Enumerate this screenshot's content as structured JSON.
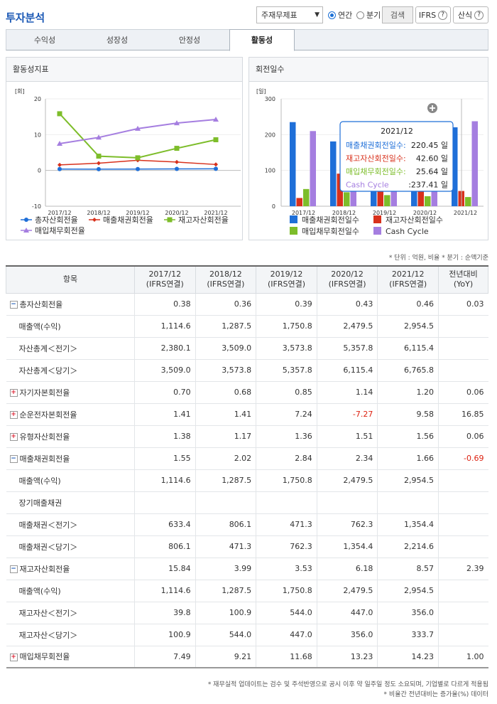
{
  "header": {
    "title": "투자분석",
    "select_value": "주재무제표",
    "radio_annual": "연간",
    "radio_quarter": "분기",
    "search_label": "검색",
    "ifrs_label": "IFRS",
    "formula_label": "산식",
    "help_glyph": "?"
  },
  "tabs": [
    "수익성",
    "성장성",
    "안정성",
    "활동성"
  ],
  "left_panel": {
    "title": "활동성지표",
    "y_unit": "[회]",
    "legend": [
      "총자산회전율",
      "매출채권회전율",
      "재고자산회전율",
      "매입채무회전율"
    ]
  },
  "right_panel": {
    "title": "회전일수",
    "y_unit": "[일]",
    "legend": [
      "매출채권회전일수",
      "재고자산회전일수",
      "매입채무회전일수",
      "Cash Cycle"
    ],
    "tooltip": {
      "title": "2021/12",
      "rows": [
        {
          "label": "매출채권회전일수:",
          "value": "220.45  일"
        },
        {
          "label": "재고자산회전일수:",
          "value": "42.60  일"
        },
        {
          "label": "매입채무회전일수:",
          "value": "25.64  일"
        },
        {
          "label": "Cash Cycle",
          "value": ":237.41  일"
        }
      ]
    }
  },
  "colors": {
    "blue": "#1f6fd8",
    "red": "#d8311c",
    "green": "#7dbd2a",
    "purple": "#a57ee0"
  },
  "chart_data": [
    {
      "type": "line",
      "categories": [
        "2017/12",
        "2018/12",
        "2019/12",
        "2020/12",
        "2021/12"
      ],
      "ylim": [
        -10,
        20
      ],
      "yticks": [
        "20",
        "10",
        "0",
        "-10"
      ],
      "series": [
        {
          "name": "총자산회전율",
          "values": [
            0.38,
            0.36,
            0.39,
            0.43,
            0.46
          ]
        },
        {
          "name": "매출채권회전율",
          "values": [
            1.55,
            2.02,
            2.84,
            2.34,
            1.66
          ]
        },
        {
          "name": "재고자산회전율",
          "values": [
            15.84,
            3.99,
            3.53,
            6.18,
            8.57
          ]
        },
        {
          "name": "매입채무회전율",
          "values": [
            7.49,
            9.21,
            11.68,
            13.23,
            14.23
          ]
        }
      ]
    },
    {
      "type": "bar",
      "categories": [
        "2017/12",
        "2018/12",
        "2019/12",
        "2020/12",
        "2021/12"
      ],
      "ylim": [
        0,
        300
      ],
      "yticks": [
        "300",
        "200",
        "100",
        "0"
      ],
      "series": [
        {
          "name": "매출채권회전일수",
          "values": [
            235,
            181,
            128,
            156,
            220.45
          ]
        },
        {
          "name": "재고자산회전일수",
          "values": [
            23,
            91,
            103,
            59,
            42.6
          ]
        },
        {
          "name": "매입채무회전일수",
          "values": [
            48,
            39,
            31,
            28,
            25.64
          ]
        },
        {
          "name": "Cash Cycle",
          "values": [
            210,
            233,
            200,
            187,
            237.41
          ]
        }
      ]
    }
  ],
  "unit_note": "* 단위 : 억원, 비율   * 분기 : 순액기준",
  "table": {
    "headers": [
      {
        "l1": "항목",
        "l2": ""
      },
      {
        "l1": "2017/12",
        "l2": "(IFRS연결)"
      },
      {
        "l1": "2018/12",
        "l2": "(IFRS연결)"
      },
      {
        "l1": "2019/12",
        "l2": "(IFRS연결)"
      },
      {
        "l1": "2020/12",
        "l2": "(IFRS연결)"
      },
      {
        "l1": "2021/12",
        "l2": "(IFRS연결)"
      },
      {
        "l1": "전년대비",
        "l2": "(YoY)"
      }
    ],
    "rows": [
      {
        "label": "총자산회전율",
        "toggle": "minus",
        "cells": [
          "0.38",
          "0.36",
          "0.39",
          "0.43",
          "0.46",
          "0.03"
        ]
      },
      {
        "label": "매출액(수익)",
        "toggle": "",
        "cells": [
          "1,114.6",
          "1,287.5",
          "1,750.8",
          "2,479.5",
          "2,954.5",
          ""
        ]
      },
      {
        "label": "자산총계＜전기＞",
        "toggle": "",
        "cells": [
          "2,380.1",
          "3,509.0",
          "3,573.8",
          "5,357.8",
          "6,115.4",
          ""
        ]
      },
      {
        "label": "자산총계＜당기＞",
        "toggle": "",
        "cells": [
          "3,509.0",
          "3,573.8",
          "5,357.8",
          "6,115.4",
          "6,765.8",
          ""
        ]
      },
      {
        "label": "자기자본회전율",
        "toggle": "plus",
        "cells": [
          "0.70",
          "0.68",
          "0.85",
          "1.14",
          "1.20",
          "0.06"
        ]
      },
      {
        "label": "순운전자본회전율",
        "toggle": "plus",
        "cells": [
          "1.41",
          "1.41",
          "7.24",
          "-7.27",
          "9.58",
          "16.85"
        ]
      },
      {
        "label": "유형자산회전율",
        "toggle": "plus",
        "cells": [
          "1.38",
          "1.17",
          "1.36",
          "1.51",
          "1.56",
          "0.06"
        ]
      },
      {
        "label": "매출채권회전율",
        "toggle": "minus",
        "cells": [
          "1.55",
          "2.02",
          "2.84",
          "2.34",
          "1.66",
          "-0.69"
        ]
      },
      {
        "label": "매출액(수익)",
        "toggle": "",
        "cells": [
          "1,114.6",
          "1,287.5",
          "1,750.8",
          "2,479.5",
          "2,954.5",
          ""
        ]
      },
      {
        "label": "장기매출채권",
        "toggle": "",
        "cells": [
          "",
          "",
          "",
          "",
          "",
          ""
        ]
      },
      {
        "label": "매출채권＜전기＞",
        "toggle": "",
        "cells": [
          "633.4",
          "806.1",
          "471.3",
          "762.3",
          "1,354.4",
          ""
        ]
      },
      {
        "label": "매출채권＜당기＞",
        "toggle": "",
        "cells": [
          "806.1",
          "471.3",
          "762.3",
          "1,354.4",
          "2,214.6",
          ""
        ]
      },
      {
        "label": "재고자산회전율",
        "toggle": "minus",
        "cells": [
          "15.84",
          "3.99",
          "3.53",
          "6.18",
          "8.57",
          "2.39"
        ]
      },
      {
        "label": "매출액(수익)",
        "toggle": "",
        "cells": [
          "1,114.6",
          "1,287.5",
          "1,750.8",
          "2,479.5",
          "2,954.5",
          ""
        ]
      },
      {
        "label": "재고자산＜전기＞",
        "toggle": "",
        "cells": [
          "39.8",
          "100.9",
          "544.0",
          "447.0",
          "356.0",
          ""
        ]
      },
      {
        "label": "재고자산＜당기＞",
        "toggle": "",
        "cells": [
          "100.9",
          "544.0",
          "447.0",
          "356.0",
          "333.7",
          ""
        ]
      },
      {
        "label": "매입채무회전율",
        "toggle": "plus",
        "cells": [
          "7.49",
          "9.21",
          "11.68",
          "13.23",
          "14.23",
          "1.00"
        ]
      }
    ]
  },
  "footnotes": [
    "* 재무실적 업데이트는 검수 및 주석반영으로 공시 이후 약 일주일 정도 소요되며, 기업별로 다르게 적용됨",
    "* 비율간 전년대비는 증가율(%) 데이터"
  ]
}
